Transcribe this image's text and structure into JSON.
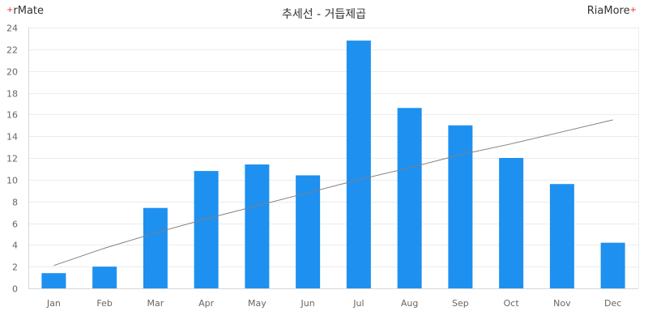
{
  "brand_left": "rMate",
  "brand_right": "RiaMore",
  "chart_data": {
    "type": "bar",
    "title": "추세선 - 거듭제곱",
    "categories": [
      "Jan",
      "Feb",
      "Mar",
      "Apr",
      "May",
      "Jun",
      "Jul",
      "Aug",
      "Sep",
      "Oct",
      "Nov",
      "Dec"
    ],
    "values": [
      1.4,
      2.0,
      7.4,
      10.8,
      11.4,
      10.4,
      22.8,
      16.6,
      15.0,
      12.0,
      9.6,
      4.2
    ],
    "trendline": {
      "type": "power",
      "values": [
        2.1,
        3.7,
        5.1,
        6.4,
        7.6,
        8.8,
        10.0,
        11.1,
        12.3,
        13.3,
        14.4,
        15.5
      ]
    },
    "yticks": [
      0,
      2,
      4,
      6,
      8,
      10,
      12,
      14,
      16,
      18,
      20,
      22,
      24
    ],
    "ylim": [
      0,
      24
    ],
    "xlabel": "",
    "ylabel": "",
    "grid": true,
    "colors": {
      "bar": "#1e90f0",
      "trend": "#808080",
      "grid": "#ececec",
      "axis": "#d8d8d8"
    }
  }
}
